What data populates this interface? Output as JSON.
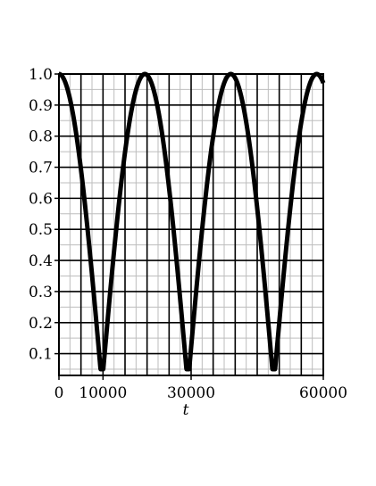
{
  "chart_data": {
    "type": "line",
    "title": "",
    "xlabel": "t",
    "ylabel": "",
    "xlim": [
      0,
      60000
    ],
    "ylim": [
      0.03,
      1.0
    ],
    "grid": true,
    "legend": "none",
    "x_ticks": [
      {
        "value": 0,
        "label": "0"
      },
      {
        "value": 10000,
        "label": "10000"
      },
      {
        "value": 30000,
        "label": "30000"
      },
      {
        "value": 60000,
        "label": "60000"
      }
    ],
    "y_ticks": [
      {
        "value": 1.0,
        "label": "1.0"
      },
      {
        "value": 0.9,
        "label": "0.9"
      },
      {
        "value": 0.8,
        "label": "0.8"
      },
      {
        "value": 0.7,
        "label": "0.7"
      },
      {
        "value": 0.6,
        "label": "0.6"
      },
      {
        "value": 0.5,
        "label": "0.5"
      },
      {
        "value": 0.4,
        "label": "0.4"
      },
      {
        "value": 0.3,
        "label": "0.3"
      },
      {
        "value": 0.2,
        "label": "0.2"
      },
      {
        "value": 0.1,
        "label": "0.1"
      }
    ],
    "grid_major_x": [
      0,
      5000,
      10000,
      15000,
      20000,
      25000,
      30000,
      35000,
      40000,
      45000,
      50000,
      55000,
      60000
    ],
    "grid_major_y": [
      0.1,
      0.2,
      0.3,
      0.4,
      0.5,
      0.6,
      0.7,
      0.8,
      0.9,
      1.0
    ],
    "series": [
      {
        "function": "abs(cos(pi*t/19500))",
        "x_range": [
          0,
          60000
        ],
        "y_floor": 0.05,
        "color": "#000000",
        "line_width": 5
      }
    ],
    "colors": {
      "major_grid": "#000000",
      "minor_grid": "#bdbdbd",
      "frame": "#000000",
      "curve": "#000000"
    }
  }
}
